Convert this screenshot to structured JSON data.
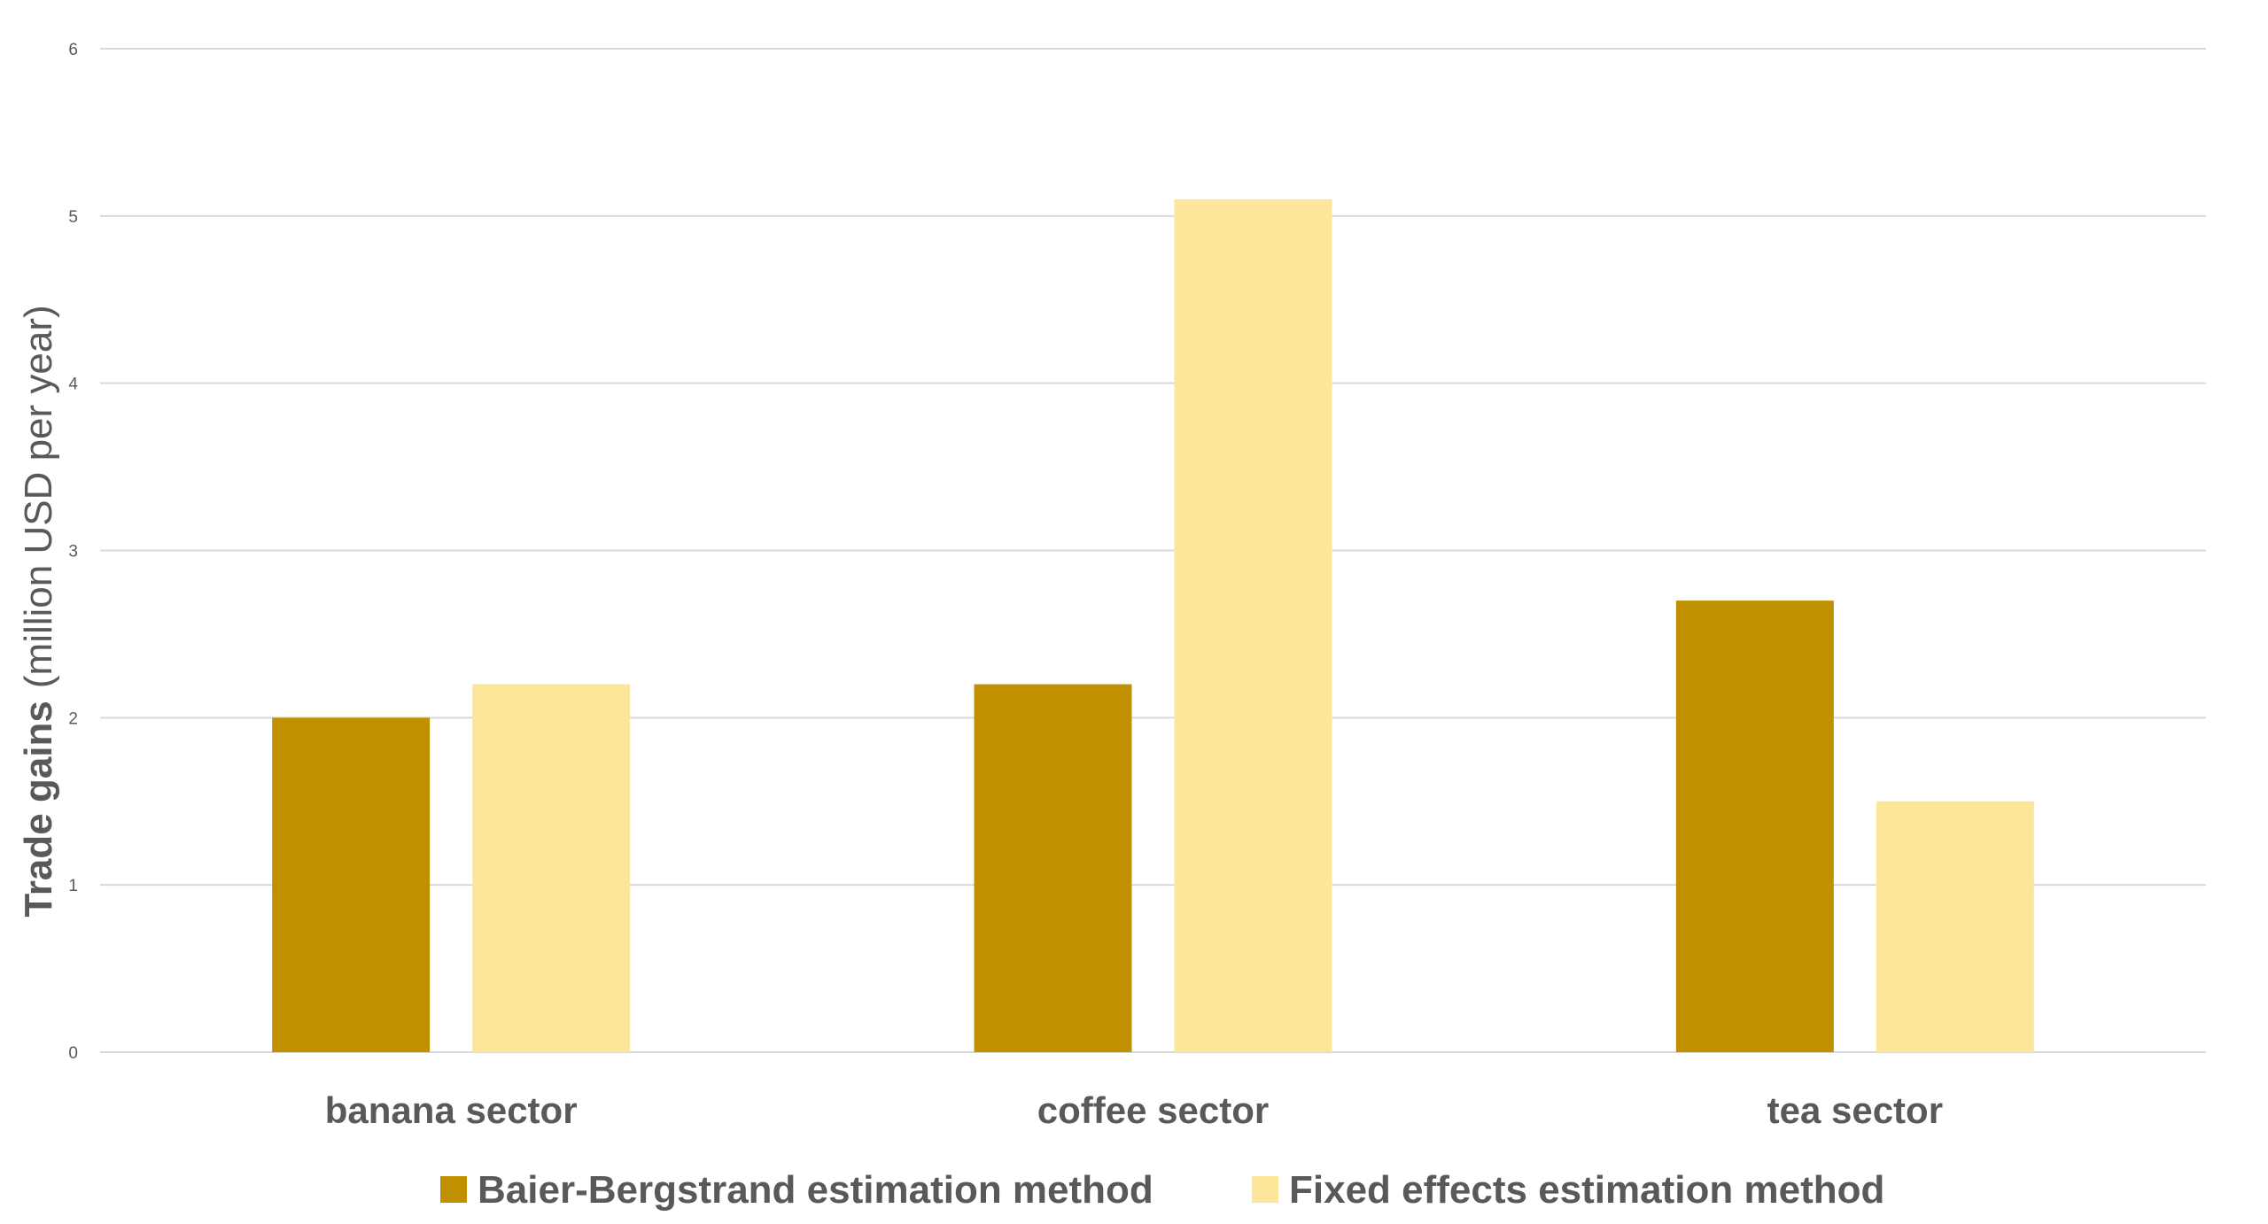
{
  "chart_data": {
    "type": "bar",
    "categories": [
      "banana sector",
      "coffee sector",
      "tea sector"
    ],
    "series": [
      {
        "name": "Baier-Bergstrand estimation method",
        "values": [
          2.0,
          2.2,
          2.7
        ],
        "color": "#bf9000"
      },
      {
        "name": "Fixed effects estimation method",
        "values": [
          2.2,
          5.1,
          1.5
        ],
        "color": "#fde699"
      }
    ],
    "ylabel_bold": "Trade gains",
    "ylabel_unit": "(million USD per year)",
    "xlabel": "",
    "title": "",
    "ylim": [
      0,
      6
    ],
    "yticks": [
      0,
      1,
      2,
      3,
      4,
      5,
      6
    ],
    "grid": true,
    "legend": "bottom-center"
  }
}
